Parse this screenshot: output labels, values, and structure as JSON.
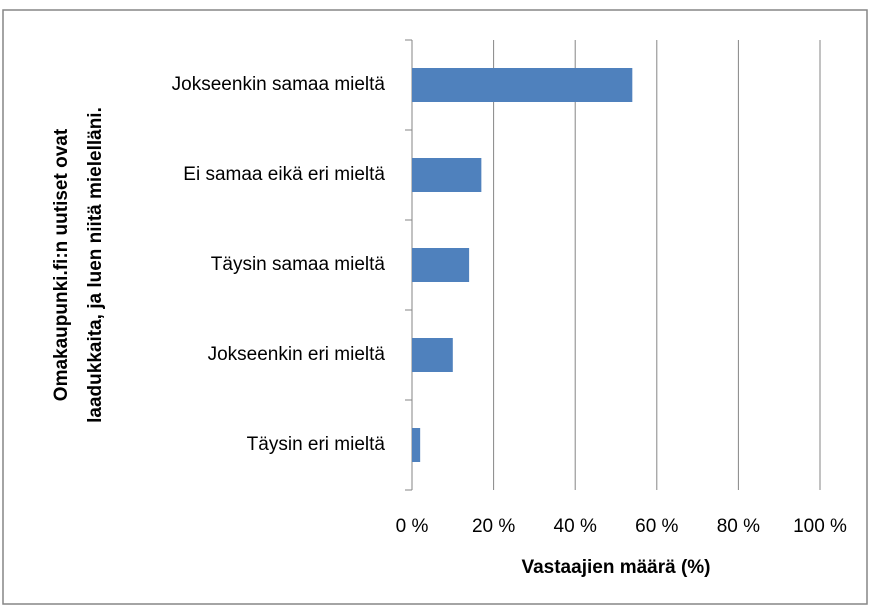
{
  "chart_data": {
    "type": "bar",
    "orientation": "horizontal",
    "y_label": [
      "Omakaupunki.fi:n uutiset ovat",
      "laadukkaita, ja luen niitä mielelläni."
    ],
    "x_label": "Vastaajien määrä (%)",
    "categories": [
      "Jokseenkin samaa mieltä",
      "Ei samaa eikä eri mieltä",
      "Täysin samaa mieltä",
      "Jokseenkin eri mieltä",
      "Täysin eri mieltä"
    ],
    "values": [
      54,
      17,
      14,
      10,
      2
    ],
    "color": "#4f81bd",
    "xlim": [
      0,
      100
    ],
    "xticks": [
      {
        "value": 0,
        "label": "0 %"
      },
      {
        "value": 20,
        "label": "20 %"
      },
      {
        "value": 40,
        "label": "40 %"
      },
      {
        "value": 60,
        "label": "60 %"
      },
      {
        "value": 80,
        "label": "80 %"
      },
      {
        "value": 100,
        "label": "100 %"
      }
    ],
    "grid": true
  }
}
